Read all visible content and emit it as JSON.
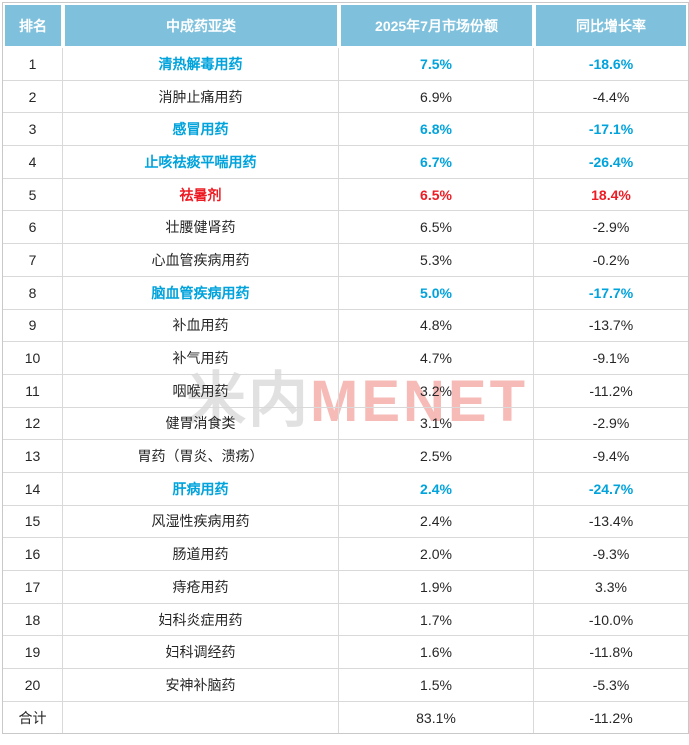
{
  "colors": {
    "header_bg": "#7fc1dc",
    "header_text": "#ffffff",
    "highlight_cyan": "#00a3dc",
    "highlight_red": "#ed1c24",
    "text": "#262626",
    "grid_border": "#d9d9d9",
    "outer_border": "#c9c9c9"
  },
  "watermark": {
    "part1": "米内",
    "part2": "MENET"
  },
  "table": {
    "headers": [
      "排名",
      "中成药亚类",
      "2025年7月市场份额",
      "同比增长率"
    ],
    "rows": [
      {
        "rank": "1",
        "category": "清热解毒用药",
        "share": "7.5%",
        "growth": "-18.6%",
        "highlight": "cyan"
      },
      {
        "rank": "2",
        "category": "消肿止痛用药",
        "share": "6.9%",
        "growth": "-4.4%",
        "highlight": "none"
      },
      {
        "rank": "3",
        "category": "感冒用药",
        "share": "6.8%",
        "growth": "-17.1%",
        "highlight": "cyan"
      },
      {
        "rank": "4",
        "category": "止咳祛痰平喘用药",
        "share": "6.7%",
        "growth": "-26.4%",
        "highlight": "cyan"
      },
      {
        "rank": "5",
        "category": "祛暑剂",
        "share": "6.5%",
        "growth": "18.4%",
        "highlight": "red"
      },
      {
        "rank": "6",
        "category": "壮腰健肾药",
        "share": "6.5%",
        "growth": "-2.9%",
        "highlight": "none"
      },
      {
        "rank": "7",
        "category": "心血管疾病用药",
        "share": "5.3%",
        "growth": "-0.2%",
        "highlight": "none"
      },
      {
        "rank": "8",
        "category": "脑血管疾病用药",
        "share": "5.0%",
        "growth": "-17.7%",
        "highlight": "cyan"
      },
      {
        "rank": "9",
        "category": "补血用药",
        "share": "4.8%",
        "growth": "-13.7%",
        "highlight": "none"
      },
      {
        "rank": "10",
        "category": "补气用药",
        "share": "4.7%",
        "growth": "-9.1%",
        "highlight": "none"
      },
      {
        "rank": "11",
        "category": "咽喉用药",
        "share": "3.2%",
        "growth": "-11.2%",
        "highlight": "none"
      },
      {
        "rank": "12",
        "category": "健胃消食类",
        "share": "3.1%",
        "growth": "-2.9%",
        "highlight": "none"
      },
      {
        "rank": "13",
        "category": "胃药（胃炎、溃疡）",
        "share": "2.5%",
        "growth": "-9.4%",
        "highlight": "none"
      },
      {
        "rank": "14",
        "category": "肝病用药",
        "share": "2.4%",
        "growth": "-24.7%",
        "highlight": "cyan"
      },
      {
        "rank": "15",
        "category": "风湿性疾病用药",
        "share": "2.4%",
        "growth": "-13.4%",
        "highlight": "none"
      },
      {
        "rank": "16",
        "category": "肠道用药",
        "share": "2.0%",
        "growth": "-9.3%",
        "highlight": "none"
      },
      {
        "rank": "17",
        "category": "痔疮用药",
        "share": "1.9%",
        "growth": "3.3%",
        "highlight": "none"
      },
      {
        "rank": "18",
        "category": "妇科炎症用药",
        "share": "1.7%",
        "growth": "-10.0%",
        "highlight": "none"
      },
      {
        "rank": "19",
        "category": "妇科调经药",
        "share": "1.6%",
        "growth": "-11.8%",
        "highlight": "none"
      },
      {
        "rank": "20",
        "category": "安神补脑药",
        "share": "1.5%",
        "growth": "-5.3%",
        "highlight": "none"
      }
    ],
    "total": {
      "rank": "合计",
      "category": "",
      "share": "83.1%",
      "growth": "-11.2%",
      "highlight": "none"
    }
  },
  "chart_data": {
    "type": "table",
    "columns": [
      "排名",
      "中成药亚类",
      "2025年7月市场份额",
      "同比增长率"
    ],
    "rows": [
      [
        "1",
        "清热解毒用药",
        "7.5%",
        "-18.6%"
      ],
      [
        "2",
        "消肿止痛用药",
        "6.9%",
        "-4.4%"
      ],
      [
        "3",
        "感冒用药",
        "6.8%",
        "-17.1%"
      ],
      [
        "4",
        "止咳祛痰平喘用药",
        "6.7%",
        "-26.4%"
      ],
      [
        "5",
        "祛暑剂",
        "6.5%",
        "18.4%"
      ],
      [
        "6",
        "壮腰健肾药",
        "6.5%",
        "-2.9%"
      ],
      [
        "7",
        "心血管疾病用药",
        "5.3%",
        "-0.2%"
      ],
      [
        "8",
        "脑血管疾病用药",
        "5.0%",
        "-17.7%"
      ],
      [
        "9",
        "补血用药",
        "4.8%",
        "-13.7%"
      ],
      [
        "10",
        "补气用药",
        "4.7%",
        "-9.1%"
      ],
      [
        "11",
        "咽喉用药",
        "3.2%",
        "-11.2%"
      ],
      [
        "12",
        "健胃消食类",
        "3.1%",
        "-2.9%"
      ],
      [
        "13",
        "胃药（胃炎、溃疡）",
        "2.5%",
        "-9.4%"
      ],
      [
        "14",
        "肝病用药",
        "2.4%",
        "-24.7%"
      ],
      [
        "15",
        "风湿性疾病用药",
        "2.4%",
        "-13.4%"
      ],
      [
        "16",
        "肠道用药",
        "2.0%",
        "-9.3%"
      ],
      [
        "17",
        "痔疮用药",
        "1.9%",
        "3.3%"
      ],
      [
        "18",
        "妇科炎症用药",
        "1.7%",
        "-10.0%"
      ],
      [
        "19",
        "妇科调经药",
        "1.6%",
        "-11.8%"
      ],
      [
        "20",
        "安神补脑药",
        "1.5%",
        "-5.3%"
      ],
      [
        "合计",
        "",
        "83.1%",
        "-11.2%"
      ]
    ],
    "highlighted_cyan_rows": [
      1,
      3,
      4,
      8,
      14
    ],
    "highlighted_red_rows": [
      5
    ],
    "legend_position": "none",
    "grid": true
  }
}
